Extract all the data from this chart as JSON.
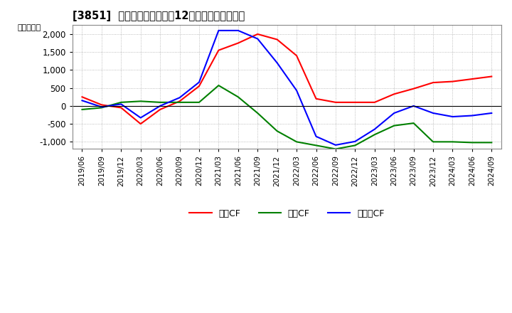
{
  "title": "[3851]  キャッシュフローの12か月移動合計の推移",
  "ylabel": "（百万円）",
  "background_color": "#ffffff",
  "plot_background": "#ffffff",
  "grid_color": "#aaaaaa",
  "dates": [
    "2019/06",
    "2019/09",
    "2019/12",
    "2020/03",
    "2020/06",
    "2020/09",
    "2020/12",
    "2021/03",
    "2021/06",
    "2021/09",
    "2021/12",
    "2022/03",
    "2022/06",
    "2022/09",
    "2022/12",
    "2023/03",
    "2023/06",
    "2023/09",
    "2023/12",
    "2024/03",
    "2024/06",
    "2024/09"
  ],
  "operating_cf": [
    250,
    30,
    -50,
    -500,
    -100,
    130,
    550,
    1550,
    1750,
    2000,
    1850,
    1400,
    200,
    100,
    100,
    100,
    330,
    480,
    650,
    680,
    750,
    820
  ],
  "investing_cf": [
    -100,
    -50,
    100,
    130,
    100,
    100,
    100,
    570,
    250,
    -200,
    -700,
    -1000,
    -1100,
    -1200,
    -1100,
    -800,
    -550,
    -480,
    -1000,
    -1000,
    -1020,
    -1020
  ],
  "free_cf": [
    150,
    -30,
    50,
    -330,
    0,
    230,
    660,
    2100,
    2100,
    1870,
    1200,
    430,
    -850,
    -1090,
    -990,
    -650,
    -200,
    0,
    -200,
    -300,
    -270,
    -200
  ],
  "operating_color": "#ff0000",
  "investing_color": "#008000",
  "free_color": "#0000ff",
  "ylim": [
    -1200,
    2250
  ],
  "yticks": [
    -1000,
    -500,
    0,
    500,
    1000,
    1500,
    2000
  ],
  "legend_labels": [
    "営業CF",
    "投資CF",
    "フリーCF"
  ]
}
